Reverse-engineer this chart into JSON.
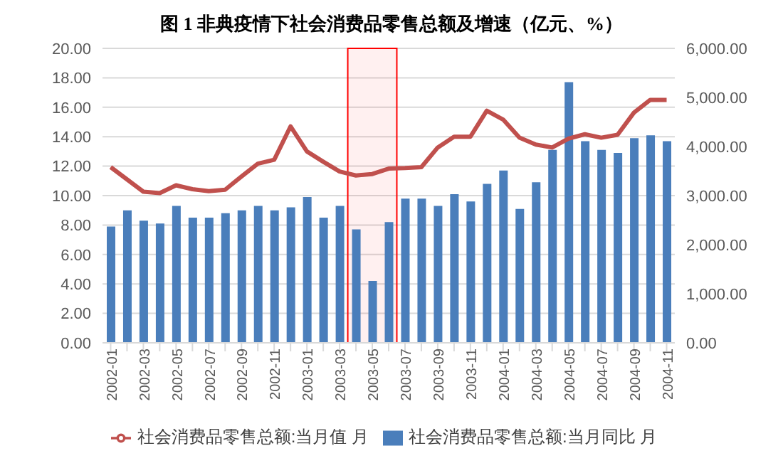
{
  "chart_data": {
    "type": "bar",
    "title": "图 1  非典疫情下社会消费品零售总额及增速（亿元、%）",
    "categories": [
      "2002-01",
      null,
      "2002-03",
      null,
      "2002-05",
      null,
      "2002-07",
      null,
      "2002-09",
      null,
      "2002-11",
      null,
      "2003-01",
      null,
      "2003-03",
      null,
      "2003-05",
      null,
      "2003-07",
      null,
      "2003-09",
      null,
      "2003-11",
      null,
      "2004-01",
      null,
      "2004-03",
      null,
      "2004-05",
      null,
      "2004-07",
      null,
      "2004-09",
      null,
      "2004-11"
    ],
    "series": [
      {
        "name": "社会消费品零售总额:当月同比 月",
        "color": "#4a7ebb",
        "values": [
          7.9,
          9.0,
          8.3,
          8.1,
          9.3,
          8.5,
          8.5,
          8.8,
          9.0,
          9.3,
          9.0,
          9.2,
          9.9,
          8.5,
          9.3,
          7.7,
          4.2,
          8.2,
          9.8,
          9.8,
          9.3,
          10.1,
          9.6,
          10.8,
          11.7,
          9.1,
          10.9,
          13.1,
          17.7,
          13.7,
          13.1,
          12.9,
          13.9,
          14.1,
          13.7
        ]
      },
      {
        "name": "社会消费品零售总额:当月值 月",
        "type": "line",
        "axis": "y2",
        "color": "#c0504d",
        "values": [
          3580,
          3330,
          3080,
          3050,
          3210,
          3130,
          3090,
          3120,
          3390,
          3650,
          3730,
          4410,
          3900,
          3690,
          3490,
          3410,
          3440,
          3550,
          3560,
          3580,
          3980,
          4200,
          4200,
          4730,
          4550,
          4180,
          4040,
          3980,
          4160,
          4250,
          4180,
          4240,
          4690,
          4950,
          4950
        ]
      }
    ],
    "ylim": [
      0,
      20
    ],
    "yticks": [
      {
        "value": 0,
        "label": "0.00"
      },
      {
        "value": 2,
        "label": "2.00"
      },
      {
        "value": 4,
        "label": "4.00"
      },
      {
        "value": 6,
        "label": "6.00"
      },
      {
        "value": 8,
        "label": "8.00"
      },
      {
        "value": 10,
        "label": "10.00"
      },
      {
        "value": 12,
        "label": "12.00"
      },
      {
        "value": 14,
        "label": "14.00"
      },
      {
        "value": 16,
        "label": "16.00"
      },
      {
        "value": 18,
        "label": "18.00"
      },
      {
        "value": 20,
        "label": "20.00"
      }
    ],
    "y2lim": [
      0,
      6000
    ],
    "y2ticks": [
      {
        "value": 0,
        "label": "0.00"
      },
      {
        "value": 1000,
        "label": "1,000.00"
      },
      {
        "value": 2000,
        "label": "2,000.00"
      },
      {
        "value": 3000,
        "label": "3,000.00"
      },
      {
        "value": 4000,
        "label": "4,000.00"
      },
      {
        "value": 5000,
        "label": "5,000.00"
      },
      {
        "value": 6000,
        "label": "6,000.00"
      }
    ],
    "bands": [
      {
        "axis": "x",
        "from": "2003-03",
        "to": "2003-07",
        "color": "#ff0000"
      }
    ],
    "grid": "y",
    "legend": "bottom",
    "marker": "none",
    "line_style": "solid"
  }
}
